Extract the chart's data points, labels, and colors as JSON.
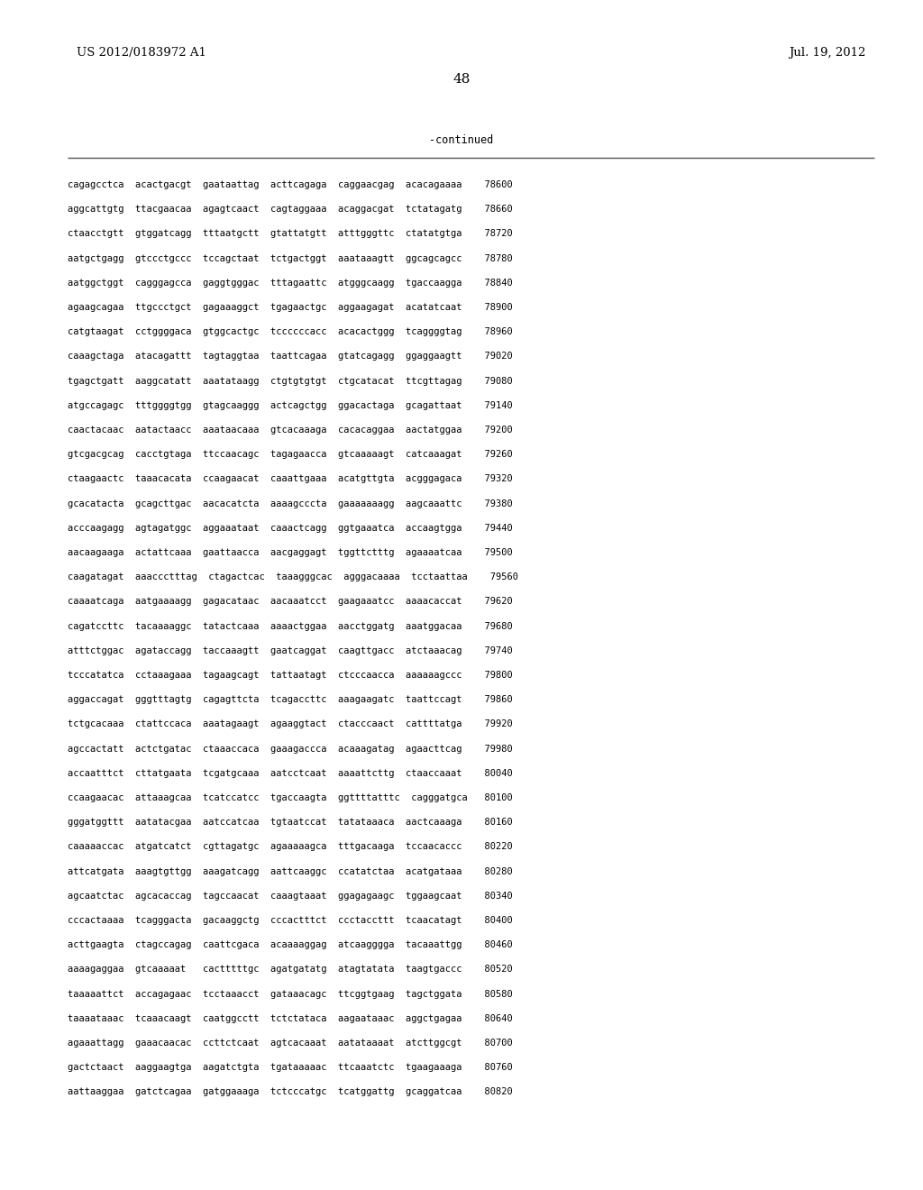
{
  "header_left": "US 2012/0183972 A1",
  "header_right": "Jul. 19, 2012",
  "page_number": "48",
  "continued_label": "-continued",
  "background_color": "#ffffff",
  "text_color": "#000000",
  "seq_font_size": 7.5,
  "header_font_size": 9.5,
  "page_num_font_size": 11,
  "continued_font_size": 8.5,
  "lines": [
    "cagagcctca  acactgacgt  gaataattag  acttcagaga  caggaacgag  acacagaaaa    78600",
    "aggcattgtg  ttacgaacaa  agagtcaact  cagtaggaaa  acaggacgat  tctatagatg    78660",
    "ctaacctgtt  gtggatcagg  tttaatgctt  gtattatgtt  atttgggttc  ctatatgtga    78720",
    "aatgctgagg  gtccctgccc  tccagctaat  tctgactggt  aaataaagtt  ggcagcagcc    78780",
    "aatggctggt  cagggagcca  gaggtgggac  tttagaattc  atgggcaagg  tgaccaagga    78840",
    "agaagcagaa  ttgccctgct  gagaaaggct  tgagaactgc  aggaagagat  acatatcaat    78900",
    "catgtaagat  cctggggaca  gtggcactgc  tccccccacc  acacactggg  tcaggggtag    78960",
    "caaagctaga  atacagattt  tagtaggtaa  taattcagaa  gtatcagagg  ggaggaagtt    79020",
    "tgagctgatt  aaggcatatt  aaatataagg  ctgtgtgtgt  ctgcatacat  ttcgttagag    79080",
    "atgccagagc  tttggggtgg  gtagcaaggg  actcagctgg  ggacactaga  gcagattaat    79140",
    "caactacaac  aatactaacc  aaataacaaa  gtcacaaaga  cacacaggaa  aactatggaa    79200",
    "gtcgacgcag  cacctgtaga  ttccaacagc  tagagaacca  gtcaaaaagt  catcaaagat    79260",
    "ctaagaactc  taaacacata  ccaagaacat  caaattgaaa  acatgttgta  acgggagaca    79320",
    "gcacatacta  gcagcttgac  aacacatcta  aaaagcccta  gaaaaaaagg  aagcaaattc    79380",
    "acccaagagg  agtagatggc  aggaaataat  caaactcagg  ggtgaaatca  accaagtgga    79440",
    "aacaagaaga  actattcaaa  gaattaacca  aacgaggagt  tggttctttg  agaaaatcaa    79500",
    "caagatagat  aaaccctttag  ctagactcac  taaagggcac  agggacaaaa  tcctaattaa    79560",
    "caaaatcaga  aatgaaaagg  gagacataac  aacaaatcct  gaagaaatcc  aaaacaccat    79620",
    "cagatccttc  tacaaaaggc  tatactcaaa  aaaactggaa  aacctggatg  aaatggacaa    79680",
    "atttctggac  agataccagg  taccaaagtt  gaatcaggat  caagttgacc  atctaaacag    79740",
    "tcccatatca  cctaaagaaa  tagaagcagt  tattaatagt  ctcccaacca  aaaaaagccc    79800",
    "aggaccagat  gggtttagtg  cagagttcta  tcagaccttc  aaagaagatc  taattccagt    79860",
    "tctgcacaaa  ctattccaca  aaatagaagt  agaaggtact  ctacccaact  cattttatga    79920",
    "agccactatt  actctgatac  ctaaaccaca  gaaagaccca  acaaagatag  agaacttcag    79980",
    "accaatttct  cttatgaata  tcgatgcaaa  aatcctcaat  aaaattcttg  ctaaccaaat    80040",
    "ccaagaacac  attaaagcaa  tcatccatcc  tgaccaagta  ggttttatttc  cagggatgca   80100",
    "gggatggttt  aatatacgaa  aatccatcaa  tgtaatccat  tatataaaca  aactcaaaga    80160",
    "caaaaaccac  atgatcatct  cgttagatgc  agaaaaagca  tttgacaaga  tccaacaccc    80220",
    "attcatgata  aaagtgttgg  aaagatcagg  aattcaaggc  ccatatctaa  acatgataaa    80280",
    "agcaatctac  agcacaccag  tagccaacat  caaagtaaat  ggagagaagc  tggaagcaat    80340",
    "cccactaaaa  tcagggacta  gacaaggctg  cccactttct  ccctaccttt  tcaacatagt    80400",
    "acttgaagta  ctagccagag  caattcgaca  acaaaaggag  atcaagggga  tacaaattgg    80460",
    "aaaagaggaa  gtcaaaaat   cactttttgc  agatgatatg  atagtatata  taagtgaccc    80520",
    "taaaaattct  accagagaac  tcctaaacct  gataaacagc  ttcggtgaag  tagctggata    80580",
    "taaaataaac  tcaaacaagt  caatggcctt  tctctataca  aagaataaac  aggctgagaa    80640",
    "agaaattagg  gaaacaacac  ccttctcaat  agtcacaaat  aatataaaat  atcttggcgt    80700",
    "gactctaact  aaggaagtga  aagatctgta  tgataaaaac  ttcaaatctc  tgaagaaaga    80760",
    "aattaaggaa  gatctcagaa  gatggaaaga  tctcccatgc  tcatggattg  gcaggatcaa    80820"
  ]
}
